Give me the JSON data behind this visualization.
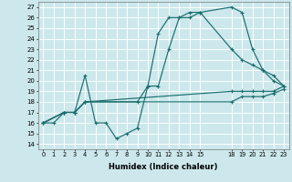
{
  "xlabel": "Humidex (Indice chaleur)",
  "bg_color": "#cce8ec",
  "grid_color": "#ffffff",
  "line_color": "#1a6e6e",
  "xlim": [
    -0.5,
    23.5
  ],
  "ylim": [
    13.5,
    27.5
  ],
  "yticks": [
    14,
    15,
    16,
    17,
    18,
    19,
    20,
    21,
    22,
    23,
    24,
    25,
    26,
    27
  ],
  "xtick_vals": [
    0,
    1,
    2,
    3,
    4,
    5,
    6,
    7,
    8,
    9,
    10,
    11,
    12,
    13,
    14,
    15,
    18,
    19,
    20,
    21,
    22,
    23
  ],
  "xtick_labels": [
    "0",
    "1",
    "2",
    "3",
    "4",
    "5",
    "6",
    "7",
    "8",
    "9",
    "10",
    "11",
    "12",
    "13",
    "14",
    "15",
    "18",
    "19",
    "20",
    "21",
    "22",
    "23"
  ],
  "lines": [
    {
      "x": [
        0,
        1,
        2,
        3,
        4,
        5,
        6,
        7,
        8,
        9,
        10,
        11,
        12,
        13,
        14,
        15,
        18,
        19,
        20,
        21,
        22,
        23
      ],
      "y": [
        16,
        16,
        17,
        17,
        20.5,
        16,
        16,
        14.5,
        15,
        15.5,
        19.5,
        24.5,
        26,
        26,
        26.5,
        26.5,
        27,
        26.5,
        23,
        21,
        20.5,
        19.5
      ]
    },
    {
      "x": [
        0,
        2,
        3,
        4,
        9,
        10,
        11,
        12,
        13,
        14,
        15,
        18,
        19,
        20,
        21,
        22,
        23
      ],
      "y": [
        16,
        17,
        17,
        18,
        18,
        19.5,
        19.5,
        23,
        26,
        26,
        26.5,
        23,
        22,
        21.5,
        21,
        20,
        19.5
      ]
    },
    {
      "x": [
        0,
        2,
        3,
        4,
        18,
        19,
        20,
        21,
        22,
        23
      ],
      "y": [
        16,
        17,
        17,
        18,
        19,
        19,
        19,
        19,
        19,
        19.5
      ]
    },
    {
      "x": [
        0,
        2,
        3,
        4,
        18,
        19,
        20,
        21,
        22,
        23
      ],
      "y": [
        16,
        17,
        17,
        18,
        18,
        18.5,
        18.5,
        18.5,
        18.8,
        19.2
      ]
    }
  ]
}
